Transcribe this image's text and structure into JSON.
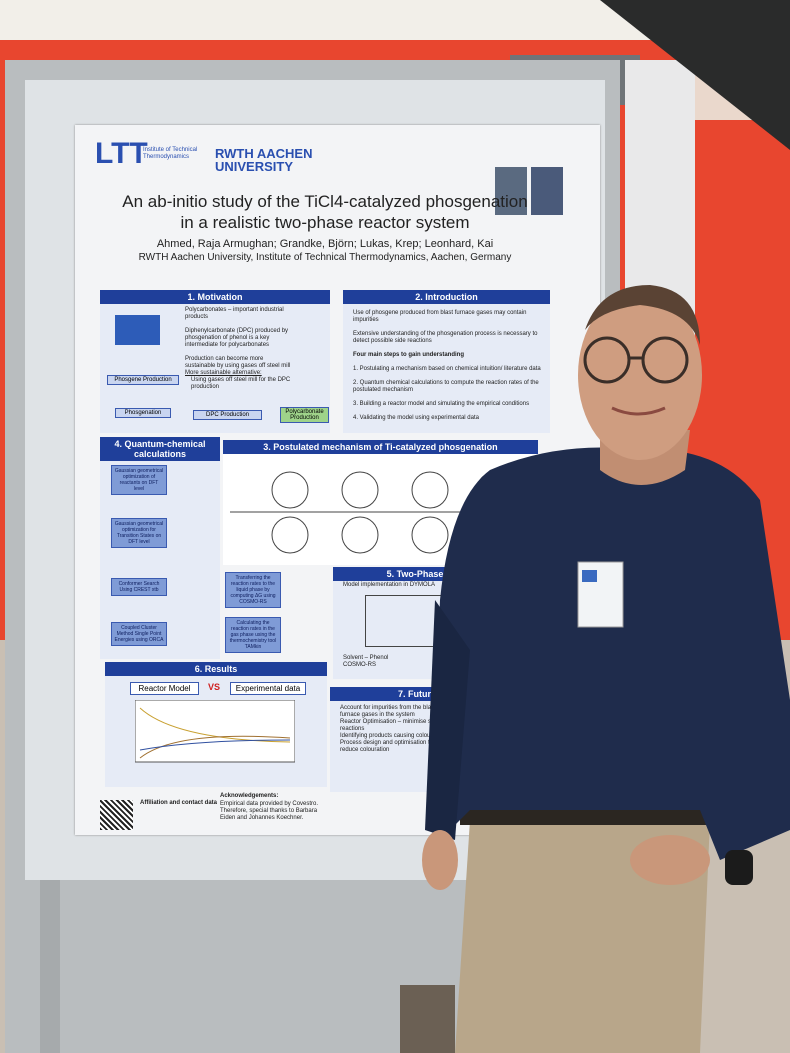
{
  "poster": {
    "header": {
      "logo": "LTT",
      "institute": "Institute of Technical Thermodynamics",
      "university": "RWTH AACHEN UNIVERSITY"
    },
    "title": [
      "An ab-initio study of the TiCl4-catalyzed phosgenation",
      "in a realistic two-phase reactor system"
    ],
    "authors": "Ahmed, Raja Armughan; Grandke, Björn; Lukas, Krep; Leonhard, Kai",
    "affiliation": "RWTH Aachen University, Institute of Technical Thermodynamics, Aachen, Germany",
    "motivation": {
      "heading": "1. Motivation",
      "items": [
        "Polycarbonates – important industrial products",
        "Diphenylcarbonate (DPC) produced by phosgenation of phenol is a key intermediate for polycarbonates",
        "Production can become more sustainable by using gases off steel mill",
        "More sustainable alternative:",
        "Using gases off steel mill for the DPC production"
      ],
      "flow": [
        "Phosgene Production",
        "Phosgenation",
        "DPC Production",
        "Polycarbonate Production"
      ]
    },
    "introduction": {
      "heading": "2. Introduction",
      "items": [
        "Use of phosgene produced from blast furnace gases may contain impurities",
        "Extensive understanding of the phosgenation process is necessary to detect possible side reactions",
        "Four main steps to gain understanding",
        "1. Postulating a mechanism based on chemical intuition/ literature data",
        "2. Quantum chemical calculations to compute the reaction rates of the postulated mechanism",
        "3. Building a reactor model and simulating the empirical conditions",
        "4. Validating the model using experimental data"
      ]
    },
    "mechanism": {
      "heading": "3. Postulated mechanism of Ti-catalyzed phosgenation"
    },
    "quantum": {
      "heading": "4. Quantum-chemical calculations",
      "steps": [
        "Gaussian geometrical optimization of reactants on DFT level",
        "Gaussian geometrical optimization for Transition States on DFT level",
        "Conformer Search Using CREST xtb",
        "Coupled Cluster Method Single Point Energies using ORCA"
      ],
      "side": [
        "Transferring the reaction rates to the liquid phase by computing ΔG using COSMO-RS",
        "Calculating the reaction rates in the gas phase using the thermochemistry tool TAMkin"
      ]
    },
    "reactor": {
      "heading": "5. Two-Phase Reactor",
      "items": [
        "Model implementation in DYMOLA",
        "Solvent – Phenol",
        "COSMO-RS"
      ]
    },
    "results": {
      "heading": "6. Results",
      "left": "Reactor Model",
      "vs": "VS",
      "right": "Experimental data"
    },
    "future": {
      "heading": "7. Future W",
      "items": [
        "Account for impurities from the blast furnace gases in the system",
        "Reactor Optimisation – minimise side reactions",
        "Identifying products causing colouration",
        "Process design and optimisation to reduce colouration"
      ]
    },
    "footer": {
      "contact": "Affiliation and contact data",
      "ack": "Acknowledgements:",
      "ack_text": "Empirical data provided by Covestro. Therefore, special thanks to Barbara Eiden and Johannes Koechner."
    }
  }
}
